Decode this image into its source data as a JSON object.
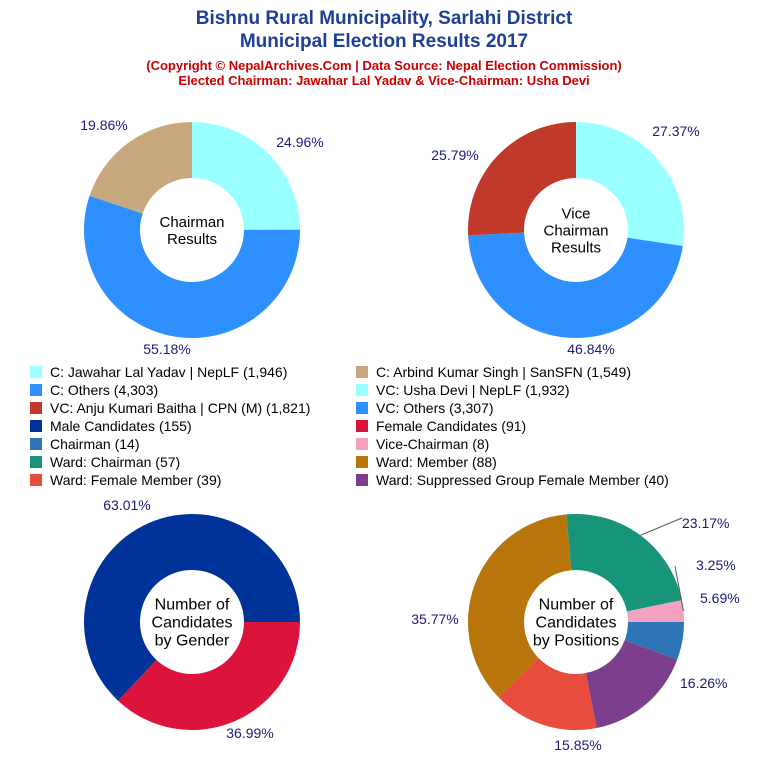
{
  "header": {
    "title_line1": "Bishnu Rural Municipality, Sarlahi District",
    "title_line2": "Municipal Election Results 2017",
    "copyright": "(Copyright © NepalArchives.Com | Data Source: Nepal Election Commission)",
    "elected": "Elected Chairman: Jawahar Lal Yadav & Vice-Chairman: Usha Devi"
  },
  "legend": [
    {
      "label": "C: Jawahar Lal Yadav | NepLF (1,946)",
      "color": "#99ffff"
    },
    {
      "label": "C: Arbind Kumar Singh | SanSFN (1,549)",
      "color": "#c8a97e"
    },
    {
      "label": "C: Others (4,303)",
      "color": "#2e90ff"
    },
    {
      "label": "VC: Usha Devi | NepLF (1,932)",
      "color": "#99ffff"
    },
    {
      "label": "VC: Anju Kumari Baitha | CPN (M) (1,821)",
      "color": "#c0392b"
    },
    {
      "label": "VC: Others (3,307)",
      "color": "#2e90ff"
    },
    {
      "label": "Male Candidates (155)",
      "color": "#003399"
    },
    {
      "label": "Female Candidates (91)",
      "color": "#dc143c"
    },
    {
      "label": "Chairman (14)",
      "color": "#2e75b6"
    },
    {
      "label": "Vice-Chairman (8)",
      "color": "#f4a0c0"
    },
    {
      "label": "Ward: Chairman (57)",
      "color": "#16957a"
    },
    {
      "label": "Ward: Member (88)",
      "color": "#b8760a"
    },
    {
      "label": "Ward: Female Member (39)",
      "color": "#e74c3c"
    },
    {
      "label": "Ward: Suppressed Group Female Member (40)",
      "color": "#7b3f8c"
    }
  ],
  "chart_data": [
    {
      "type": "pie",
      "center_label": [
        "Chairman",
        "Results"
      ],
      "slices": [
        {
          "name": "C: Jawahar Lal Yadav | NepLF",
          "value": 1946,
          "percent_label": "24.96%",
          "color": "#99ffff"
        },
        {
          "name": "C: Others",
          "value": 4303,
          "percent_label": "55.18%",
          "color": "#2e90ff"
        },
        {
          "name": "C: Arbind Kumar Singh | SanSFN",
          "value": 1549,
          "percent_label": "19.86%",
          "color": "#c8a97e"
        }
      ]
    },
    {
      "type": "pie",
      "center_label": [
        "Vice",
        "Chairman",
        "Results"
      ],
      "slices": [
        {
          "name": "VC: Usha Devi | NepLF",
          "value": 1932,
          "percent_label": "27.37%",
          "color": "#99ffff"
        },
        {
          "name": "VC: Others",
          "value": 3307,
          "percent_label": "46.84%",
          "color": "#2e90ff"
        },
        {
          "name": "VC: Anju Kumari Baitha | CPN (M)",
          "value": 1821,
          "percent_label": "25.79%",
          "color": "#c0392b"
        }
      ]
    },
    {
      "type": "pie",
      "center_label": [
        "Number of",
        "Candidates",
        "by Gender"
      ],
      "slices": [
        {
          "name": "Female Candidates",
          "value": 91,
          "percent_label": "36.99%",
          "color": "#dc143c"
        },
        {
          "name": "Male Candidates",
          "value": 155,
          "percent_label": "63.01%",
          "color": "#003399"
        }
      ]
    },
    {
      "type": "pie",
      "center_label": [
        "Number of",
        "Candidates",
        "by Positions"
      ],
      "slices": [
        {
          "name": "Chairman",
          "value": 14,
          "percent_label": "5.69%",
          "color": "#2e75b6"
        },
        {
          "name": "Ward: Suppressed Group Female Member",
          "value": 40,
          "percent_label": "16.26%",
          "color": "#7b3f8c"
        },
        {
          "name": "Ward: Female Member",
          "value": 39,
          "percent_label": "15.85%",
          "color": "#e74c3c"
        },
        {
          "name": "Ward: Member",
          "value": 88,
          "percent_label": "35.77%",
          "color": "#b8760a"
        },
        {
          "name": "Ward: Chairman",
          "value": 57,
          "percent_label": "23.17%",
          "color": "#16957a"
        },
        {
          "name": "Vice-Chairman",
          "value": 8,
          "percent_label": "3.25%",
          "color": "#f4a0c0"
        }
      ]
    }
  ]
}
